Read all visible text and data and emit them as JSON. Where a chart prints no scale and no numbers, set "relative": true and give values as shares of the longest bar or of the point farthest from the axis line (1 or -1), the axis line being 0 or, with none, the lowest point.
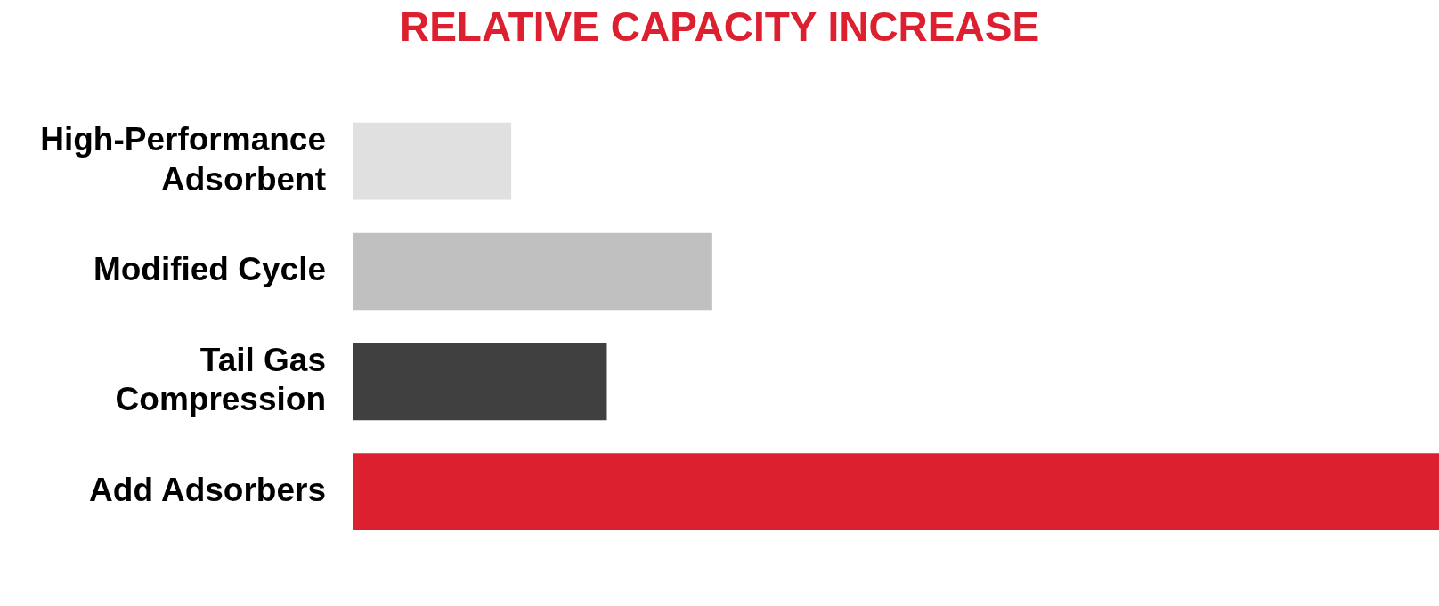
{
  "chart_data": {
    "type": "bar",
    "orientation": "horizontal",
    "relative": true,
    "title": "RELATIVE CAPACITY INCREASE",
    "categories": [
      "High-Performance Adsorbent",
      "Modified Cycle",
      "Tail Gas Compression",
      "Add Adsorbers"
    ],
    "values": [
      0.146,
      0.331,
      0.234,
      1
    ],
    "colors": [
      "#e0e0e0",
      "#c0c0c0",
      "#404040",
      "#dc2030"
    ],
    "legend": false
  }
}
